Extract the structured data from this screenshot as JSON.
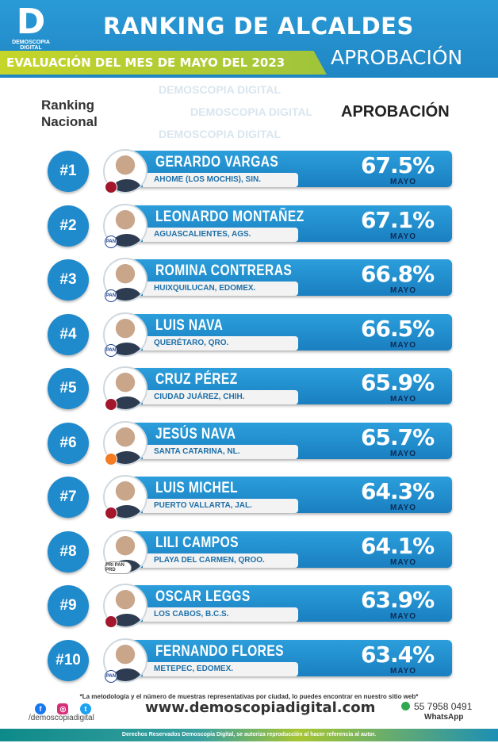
{
  "header": {
    "logo_text": "D",
    "logo_name": "DEMOSCOPIA DIGITAL",
    "title": "RANKING DE ALCALDES",
    "subtitle": "EVALUACIÓN DEL MES DE MAYO DEL 2023",
    "tag": "APROBACIÓN"
  },
  "labels": {
    "ranking": "Ranking",
    "nacional": "Nacional",
    "aprobacion": "APROBACIÓN",
    "watermark": "DEMOSCOPIA DIGITAL"
  },
  "rows": [
    {
      "rank": "#1",
      "name": "GERARDO VARGAS",
      "city": "AHOME (LOS MOCHIS), SIN.",
      "pct": "67.5%",
      "month": "MAYO",
      "party": "morena",
      "party_label": ""
    },
    {
      "rank": "#2",
      "name": "LEONARDO MONTAÑEZ",
      "city": "AGUASCALIENTES, AGS.",
      "pct": "67.1%",
      "month": "MAYO",
      "party": "pan",
      "party_label": "PAN"
    },
    {
      "rank": "#3",
      "name": "ROMINA CONTRERAS",
      "city": "HUIXQUILUCAN, EDOMEX.",
      "pct": "66.8%",
      "month": "MAYO",
      "party": "pan",
      "party_label": "PAN"
    },
    {
      "rank": "#4",
      "name": "LUIS NAVA",
      "city": "QUERÉTARO, QRO.",
      "pct": "66.5%",
      "month": "MAYO",
      "party": "pan",
      "party_label": "PAN"
    },
    {
      "rank": "#5",
      "name": "CRUZ PÉREZ",
      "city": "CIUDAD JUÁREZ, CHIH.",
      "pct": "65.9%",
      "month": "MAYO",
      "party": "morena",
      "party_label": ""
    },
    {
      "rank": "#6",
      "name": "JESÚS NAVA",
      "city": "SANTA CATARINA, NL.",
      "pct": "65.7%",
      "month": "MAYO",
      "party": "mc",
      "party_label": ""
    },
    {
      "rank": "#7",
      "name": "LUIS MICHEL",
      "city": "PUERTO VALLARTA, JAL.",
      "pct": "64.3%",
      "month": "MAYO",
      "party": "morena",
      "party_label": ""
    },
    {
      "rank": "#8",
      "name": "LILI CAMPOS",
      "city": "PLAYA DEL CARMEN, QROO.",
      "pct": "64.1%",
      "month": "MAYO",
      "party": "coal",
      "party_label": "PRI PAN PRD"
    },
    {
      "rank": "#9",
      "name": "OSCAR LEGGS",
      "city": "LOS CABOS, B.C.S.",
      "pct": "63.9%",
      "month": "MAYO",
      "party": "morena",
      "party_label": ""
    },
    {
      "rank": "#10",
      "name": "FERNANDO FLORES",
      "city": "METEPEC, EDOMEX.",
      "pct": "63.4%",
      "month": "MAYO",
      "party": "pan",
      "party_label": "PAN"
    }
  ],
  "footer": {
    "note": "*La metodología y el número de muestras representativas por ciudad, lo puedes encontrar en nuestro sitio web*",
    "handle": "/demoscopiadigital",
    "website": "www.demoscopiadigital.com",
    "phone": "55 7958 0491",
    "whatsapp": "WhatsApp",
    "rights": "Derechos Reservados Demoscopia Digital, se autoriza reproducción al hacer referencia al autor."
  },
  "colors": {
    "primary": "#1f8acc",
    "accent": "#c6d52a",
    "dark": "#0c2b55"
  }
}
